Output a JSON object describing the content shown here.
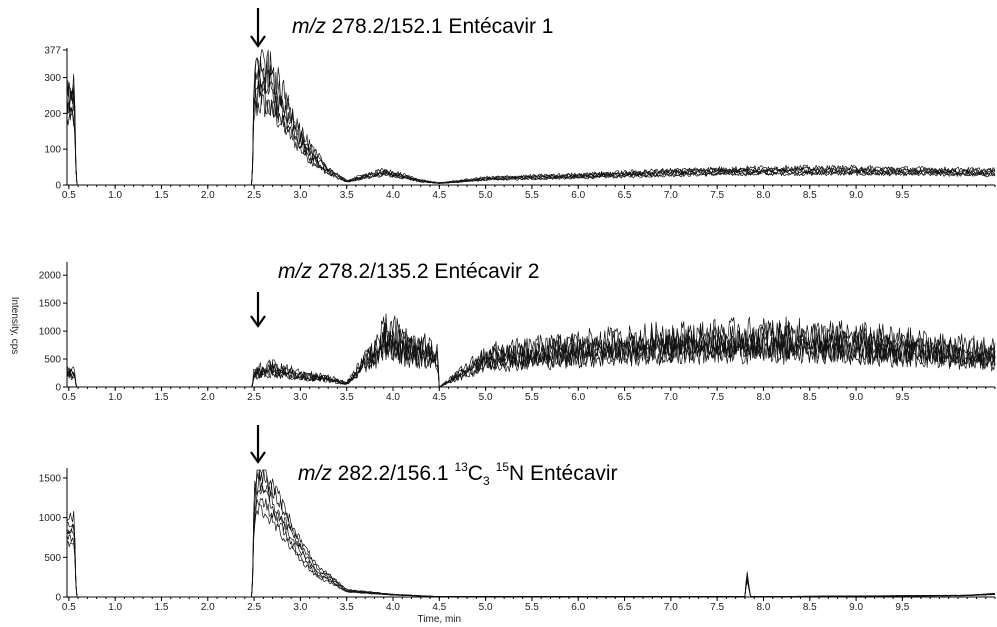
{
  "chart_data": [
    {
      "type": "line",
      "title_mz": "m/z",
      "title_rest": " 278.2/152.1 Entécavir 1",
      "x_ticks": [
        "0.5",
        "1.0",
        "1.5",
        "2.0",
        "2.5",
        "3.0",
        "3.5",
        "4.0",
        "4.5",
        "5.0",
        "5.5",
        "6.0",
        "6.5",
        "7.0",
        "7.5",
        "8.0",
        "8.5",
        "9.0",
        "9.5"
      ],
      "y_ticks": [
        "0",
        "100",
        "200",
        "300",
        "377"
      ],
      "xlim": [
        0.48,
        10.5
      ],
      "ylim": [
        0,
        377
      ],
      "arrow_at": 2.55,
      "profile": [
        [
          0.48,
          230
        ],
        [
          0.56,
          240
        ],
        [
          0.58,
          0
        ],
        [
          2.48,
          0
        ],
        [
          2.5,
          260
        ],
        [
          2.55,
          290
        ],
        [
          2.65,
          280
        ],
        [
          2.8,
          220
        ],
        [
          2.95,
          150
        ],
        [
          3.1,
          90
        ],
        [
          3.3,
          40
        ],
        [
          3.5,
          10
        ],
        [
          3.7,
          25
        ],
        [
          3.9,
          35
        ],
        [
          4.1,
          25
        ],
        [
          4.3,
          12
        ],
        [
          4.5,
          5
        ],
        [
          5.0,
          18
        ],
        [
          6.0,
          25
        ],
        [
          7.0,
          35
        ],
        [
          8.0,
          40
        ],
        [
          9.0,
          40
        ],
        [
          10.5,
          35
        ]
      ],
      "noise": 0.18,
      "traces": 6
    },
    {
      "type": "line",
      "title_mz": "m/z",
      "title_rest": " 278.2/135.2 Entécavir 2",
      "x_ticks": [
        "0.5",
        "1.0",
        "1.5",
        "2.0",
        "2.5",
        "3.0",
        "3.5",
        "4.0",
        "4.5",
        "5.0",
        "5.5",
        "6.0",
        "6.5",
        "7.0",
        "7.5",
        "8.0",
        "8.5",
        "9.0",
        "9.5"
      ],
      "y_ticks": [
        "0",
        "500",
        "1000",
        "1500",
        "2000"
      ],
      "ylabel": "Intensity, cps",
      "xlim": [
        0.48,
        10.5
      ],
      "ylim": [
        0,
        2200
      ],
      "arrow_at": 2.55,
      "profile": [
        [
          0.48,
          250
        ],
        [
          0.56,
          250
        ],
        [
          0.58,
          0
        ],
        [
          2.48,
          0
        ],
        [
          2.5,
          250
        ],
        [
          2.7,
          320
        ],
        [
          3.0,
          200
        ],
        [
          3.3,
          150
        ],
        [
          3.5,
          60
        ],
        [
          3.7,
          450
        ],
        [
          3.95,
          880
        ],
        [
          4.2,
          650
        ],
        [
          4.48,
          560
        ],
        [
          4.5,
          0
        ],
        [
          5.0,
          500
        ],
        [
          6.0,
          650
        ],
        [
          7.0,
          750
        ],
        [
          8.0,
          800
        ],
        [
          9.0,
          750
        ],
        [
          10.5,
          550
        ]
      ],
      "noise": 0.35,
      "traces": 6
    },
    {
      "type": "line",
      "title_mz": "m/z",
      "title_rest": " 282.2/156.1 ",
      "title_sup1": "13",
      "title_c": "C",
      "title_sub": "3",
      "title_sup2": "15",
      "title_end": "N Entécavir",
      "x_ticks": [
        "0.5",
        "1.0",
        "1.5",
        "2.0",
        "2.5",
        "3.0",
        "3.5",
        "4.0",
        "4.5",
        "5.0",
        "5.5",
        "6.0",
        "6.5",
        "7.0",
        "7.5",
        "8.0",
        "8.5",
        "9.0",
        "9.5"
      ],
      "y_ticks": [
        "0",
        "500",
        "1000",
        "1500"
      ],
      "xlabel": "Time, min",
      "xlim": [
        0.48,
        10.5
      ],
      "ylim": [
        0,
        1600
      ],
      "arrow_at": 2.55,
      "profile": [
        [
          0.48,
          850
        ],
        [
          0.56,
          850
        ],
        [
          0.58,
          0
        ],
        [
          2.48,
          0
        ],
        [
          2.5,
          1150
        ],
        [
          2.55,
          1450
        ],
        [
          2.65,
          1300
        ],
        [
          2.8,
          1000
        ],
        [
          3.0,
          600
        ],
        [
          3.2,
          300
        ],
        [
          3.3,
          250
        ],
        [
          3.5,
          80
        ],
        [
          4.0,
          30
        ],
        [
          4.5,
          5
        ],
        [
          7.8,
          5
        ],
        [
          7.82,
          280
        ],
        [
          7.86,
          5
        ],
        [
          10.2,
          20
        ],
        [
          10.5,
          40
        ]
      ],
      "noise": 0.08,
      "traces": 6
    }
  ]
}
